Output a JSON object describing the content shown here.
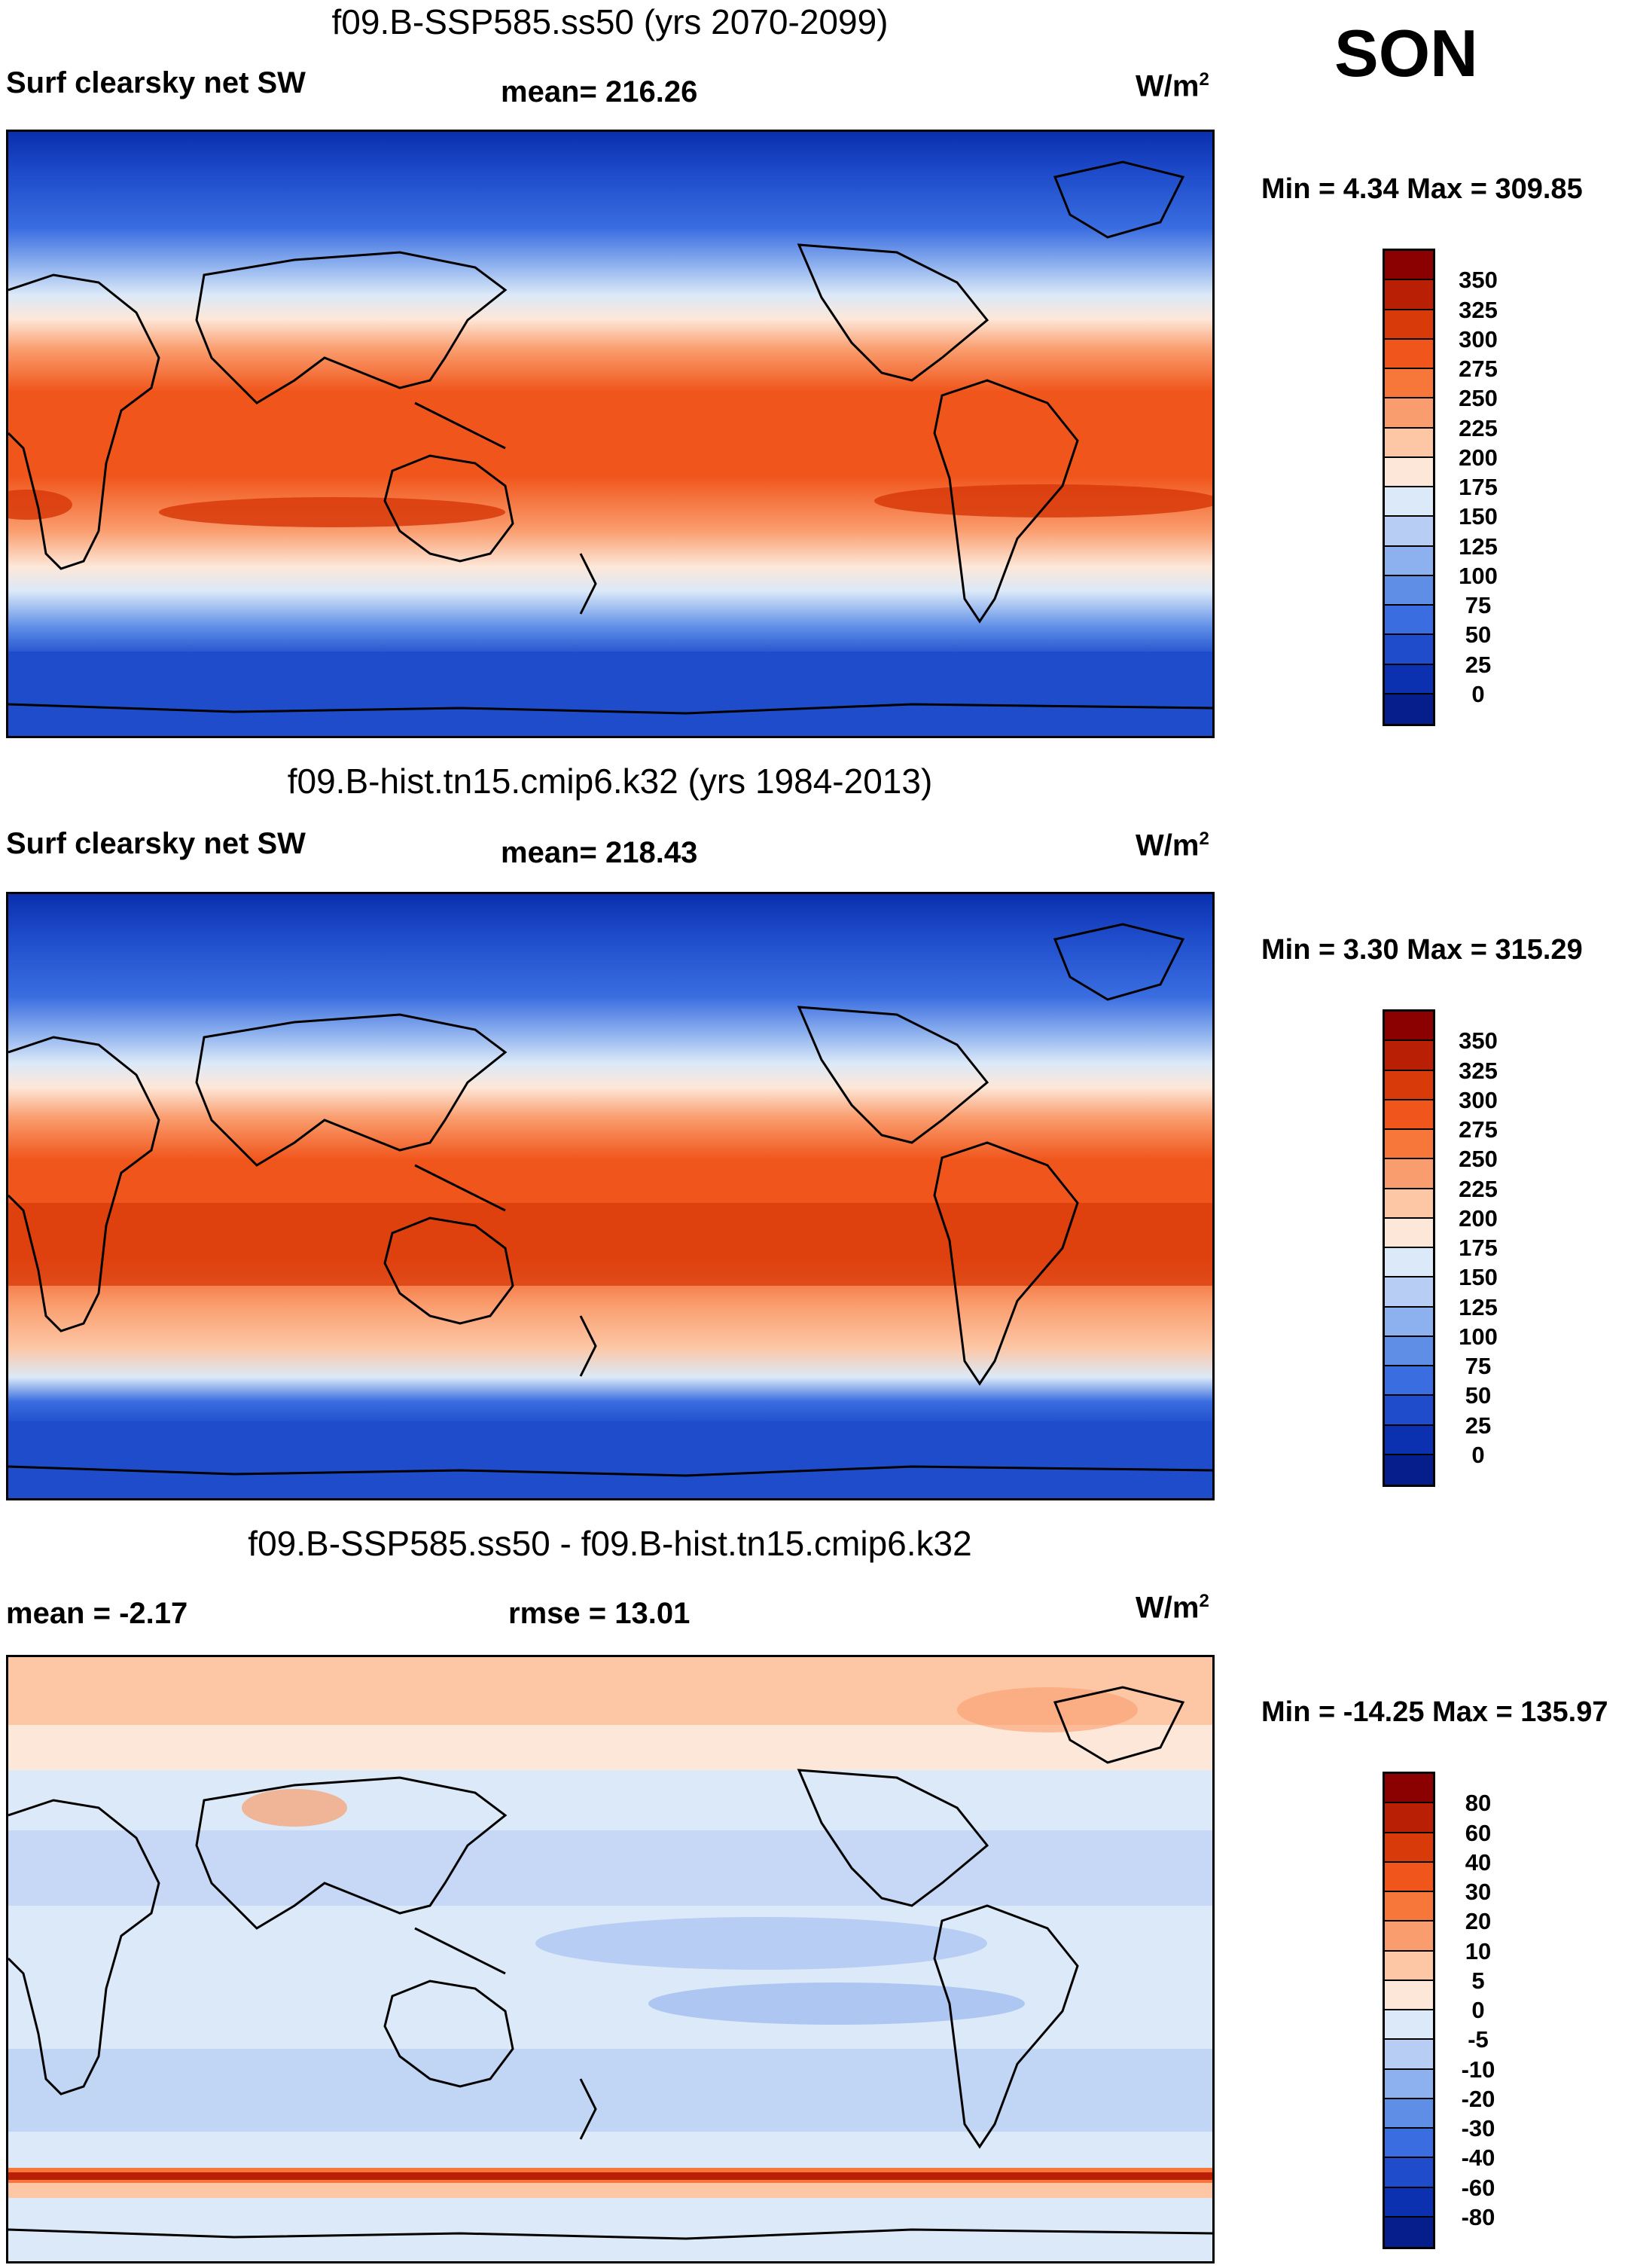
{
  "season": "SON",
  "chart_data": [
    {
      "type": "heatmap",
      "title": "f09.B-SSP585.ss50 (yrs 2070-2099)",
      "variable": "Surf clearsky net SW",
      "mean_text": "mean= 216.26",
      "units": "W/m",
      "units_exp": "2",
      "minmax_text": "Min =   4.34 Max = 309.85",
      "colorbar": {
        "labels": [
          "350",
          "325",
          "300",
          "275",
          "250",
          "225",
          "200",
          "175",
          "150",
          "125",
          "100",
          "75",
          "50",
          "25",
          "0"
        ],
        "colors": [
          "#8b0000",
          "#b81f05",
          "#d83a0a",
          "#f0561c",
          "#f7773b",
          "#fa9d6e",
          "#fdc6a4",
          "#fde7d8",
          "#dbe9f8",
          "#b7cdf3",
          "#8db0ee",
          "#5f8ee7",
          "#3a6de0",
          "#1e4ccb",
          "#0c31b0",
          "#061d8c"
        ]
      }
    },
    {
      "type": "heatmap",
      "title": "f09.B-hist.tn15.cmip6.k32 (yrs 1984-2013)",
      "variable": "Surf clearsky net SW",
      "mean_text": "mean= 218.43",
      "units": "W/m",
      "units_exp": "2",
      "minmax_text": "Min =   3.30 Max = 315.29",
      "colorbar": {
        "labels": [
          "350",
          "325",
          "300",
          "275",
          "250",
          "225",
          "200",
          "175",
          "150",
          "125",
          "100",
          "75",
          "50",
          "25",
          "0"
        ],
        "colors": [
          "#8b0000",
          "#b81f05",
          "#d83a0a",
          "#f0561c",
          "#f7773b",
          "#fa9d6e",
          "#fdc6a4",
          "#fde7d8",
          "#dbe9f8",
          "#b7cdf3",
          "#8db0ee",
          "#5f8ee7",
          "#3a6de0",
          "#1e4ccb",
          "#0c31b0",
          "#061d8c"
        ]
      }
    },
    {
      "type": "heatmap",
      "title": "f09.B-SSP585.ss50 - f09.B-hist.tn15.cmip6.k32",
      "variable": "mean =  -2.17",
      "mean_text": "rmse =  13.01",
      "units": "W/m",
      "units_exp": "2",
      "minmax_text": "Min = -14.25 Max = 135.97",
      "colorbar": {
        "labels": [
          "80",
          "60",
          "40",
          "30",
          "20",
          "10",
          "5",
          "0",
          "-5",
          "-10",
          "-20",
          "-30",
          "-40",
          "-60",
          "-80"
        ],
        "colors": [
          "#8b0000",
          "#b81f05",
          "#d83a0a",
          "#f0561c",
          "#f7773b",
          "#fa9d6e",
          "#fdc6a4",
          "#fde7d8",
          "#dbe9f8",
          "#b7cdf3",
          "#8db0ee",
          "#5f8ee7",
          "#3a6de0",
          "#1e4ccb",
          "#0c31b0",
          "#061d8c"
        ]
      }
    }
  ]
}
